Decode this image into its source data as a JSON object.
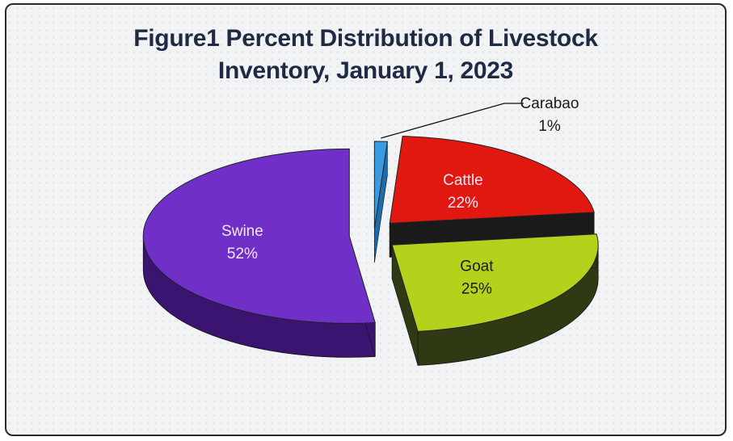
{
  "chart_data": {
    "type": "pie",
    "style": "3d-exploded",
    "title_line1": "Figure1 Percent Distribution of Livestock",
    "title_line2": "Inventory, January 1, 2023",
    "slices": [
      {
        "label": "Carabao",
        "value": 1,
        "pct_label": "1%",
        "color": "#3a9be0",
        "side": "#1f6aa8"
      },
      {
        "label": "Cattle",
        "value": 22,
        "pct_label": "22%",
        "color": "#e0180f",
        "side": "#1a1a1a"
      },
      {
        "label": "Goat",
        "value": 25,
        "pct_label": "25%",
        "color": "#b4d21c",
        "side": "#2f3a14"
      },
      {
        "label": "Swine",
        "value": 52,
        "pct_label": "52%",
        "color": "#7030c8",
        "side": "#3a1470"
      }
    ],
    "legend": "none",
    "data_labels": "inside/callout"
  }
}
